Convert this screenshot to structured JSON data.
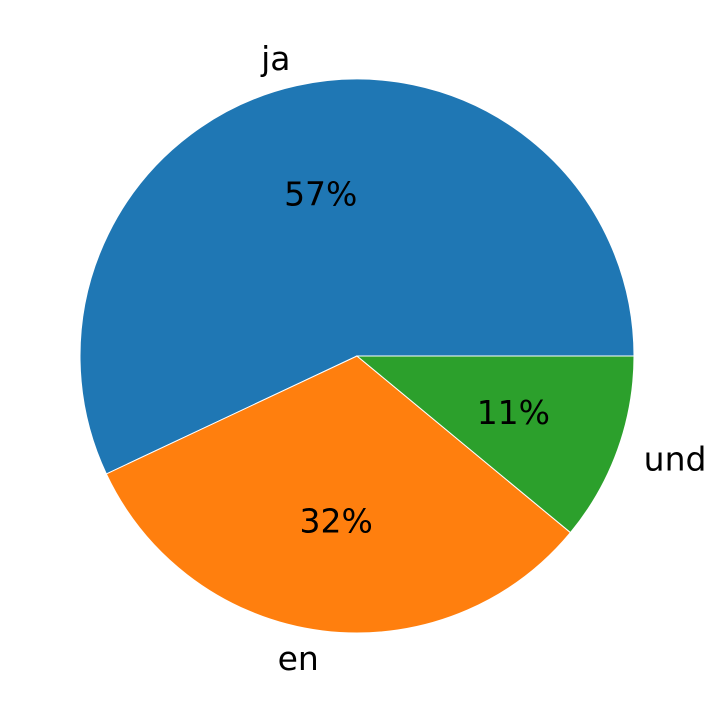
{
  "chart_data": {
    "type": "pie",
    "labels": [
      "ja",
      "en",
      "und"
    ],
    "values": [
      57,
      32,
      11
    ],
    "value_labels": [
      "57%",
      "32%",
      "11%"
    ],
    "colors": [
      "#1f77b4",
      "#ff7f0e",
      "#2ca02c"
    ],
    "start_angle_deg": 0,
    "direction": "counterclockwise",
    "title": "",
    "legend": "none"
  }
}
